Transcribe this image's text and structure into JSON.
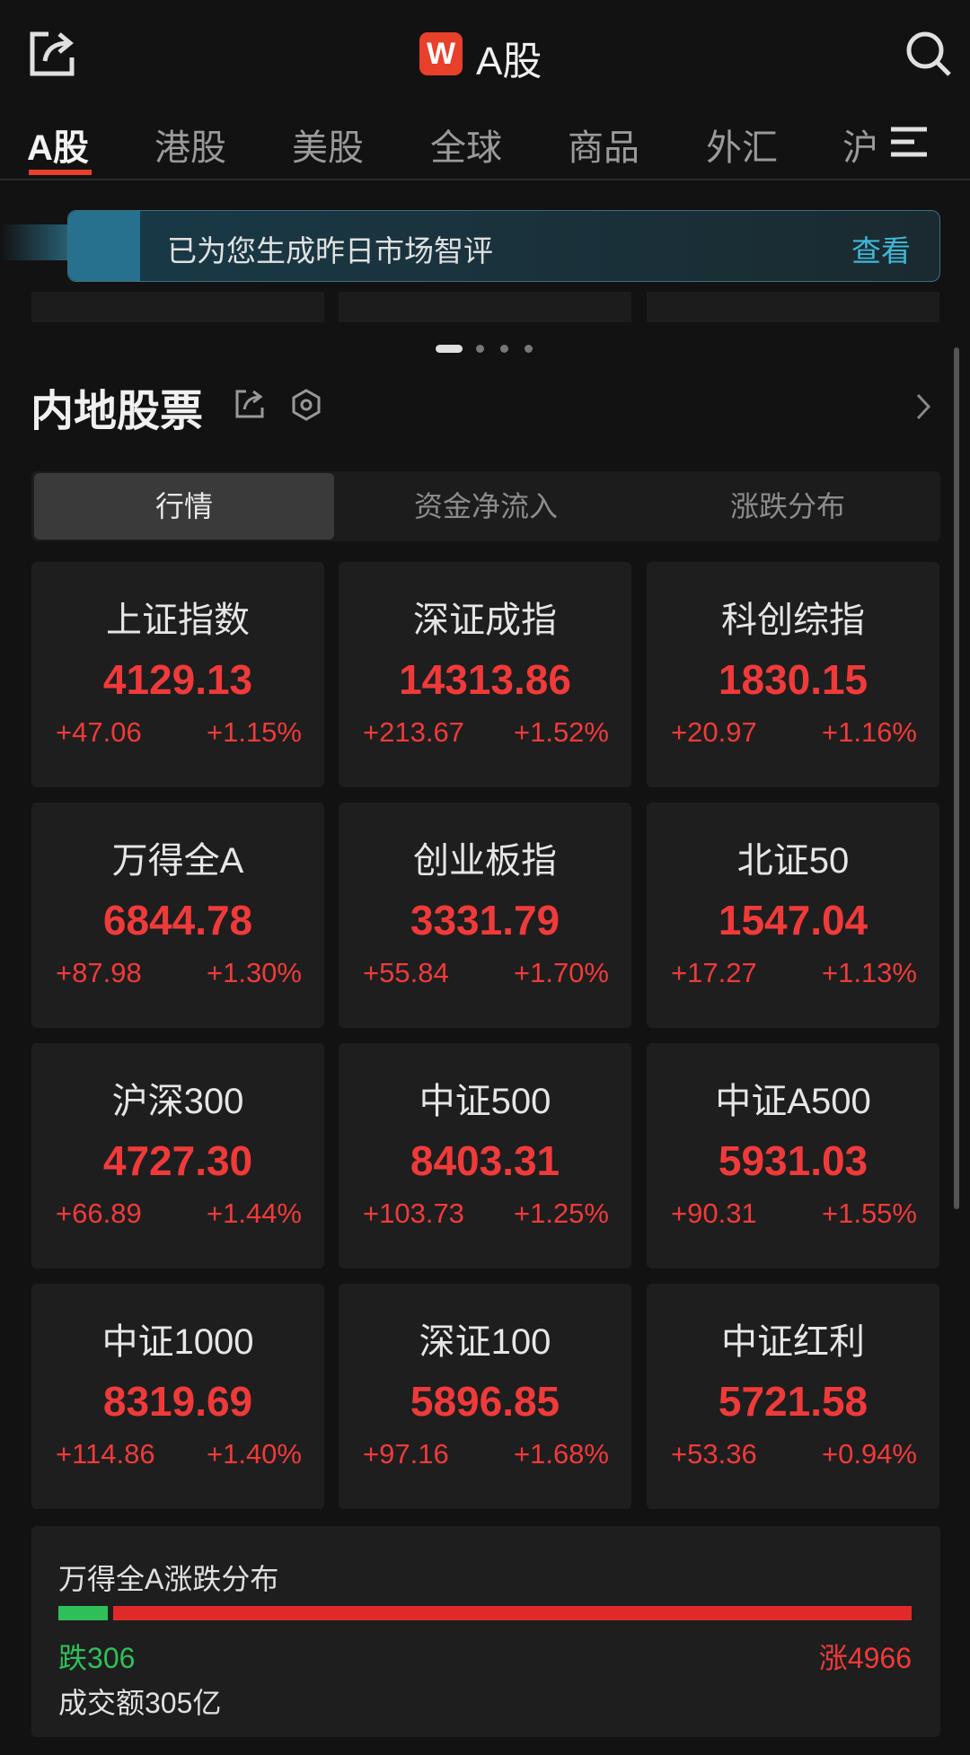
{
  "header": {
    "title": "A股",
    "logo": "W"
  },
  "tabs": [
    "A股",
    "港股",
    "美股",
    "全球",
    "商品",
    "外汇",
    "沪"
  ],
  "banner": {
    "text": "已为您生成昨日市场智评",
    "action": "查看"
  },
  "section": {
    "title": "内地股票"
  },
  "subtabs": [
    "行情",
    "资金净流入",
    "涨跌分布"
  ],
  "indices": [
    {
      "name": "上证指数",
      "price": "4129.13",
      "change": "+47.06",
      "pct": "+1.15%"
    },
    {
      "name": "深证成指",
      "price": "14313.86",
      "change": "+213.67",
      "pct": "+1.52%"
    },
    {
      "name": "科创综指",
      "price": "1830.15",
      "change": "+20.97",
      "pct": "+1.16%"
    },
    {
      "name": "万得全A",
      "price": "6844.78",
      "change": "+87.98",
      "pct": "+1.30%"
    },
    {
      "name": "创业板指",
      "price": "3331.79",
      "change": "+55.84",
      "pct": "+1.70%"
    },
    {
      "name": "北证50",
      "price": "1547.04",
      "change": "+17.27",
      "pct": "+1.13%"
    },
    {
      "name": "沪深300",
      "price": "4727.30",
      "change": "+66.89",
      "pct": "+1.44%"
    },
    {
      "name": "中证500",
      "price": "8403.31",
      "change": "+103.73",
      "pct": "+1.25%"
    },
    {
      "name": "中证A500",
      "price": "5931.03",
      "change": "+90.31",
      "pct": "+1.55%"
    },
    {
      "name": "中证1000",
      "price": "8319.69",
      "change": "+114.86",
      "pct": "+1.40%"
    },
    {
      "name": "深证100",
      "price": "5896.85",
      "change": "+97.16",
      "pct": "+1.68%"
    },
    {
      "name": "中证红利",
      "price": "5721.58",
      "change": "+53.36",
      "pct": "+0.94%"
    }
  ],
  "distribution": {
    "title": "万得全A涨跌分布",
    "fall_label": "跌",
    "fall": 306,
    "rise_label": "涨",
    "rise": 4966,
    "turnover": "成交额305亿"
  }
}
